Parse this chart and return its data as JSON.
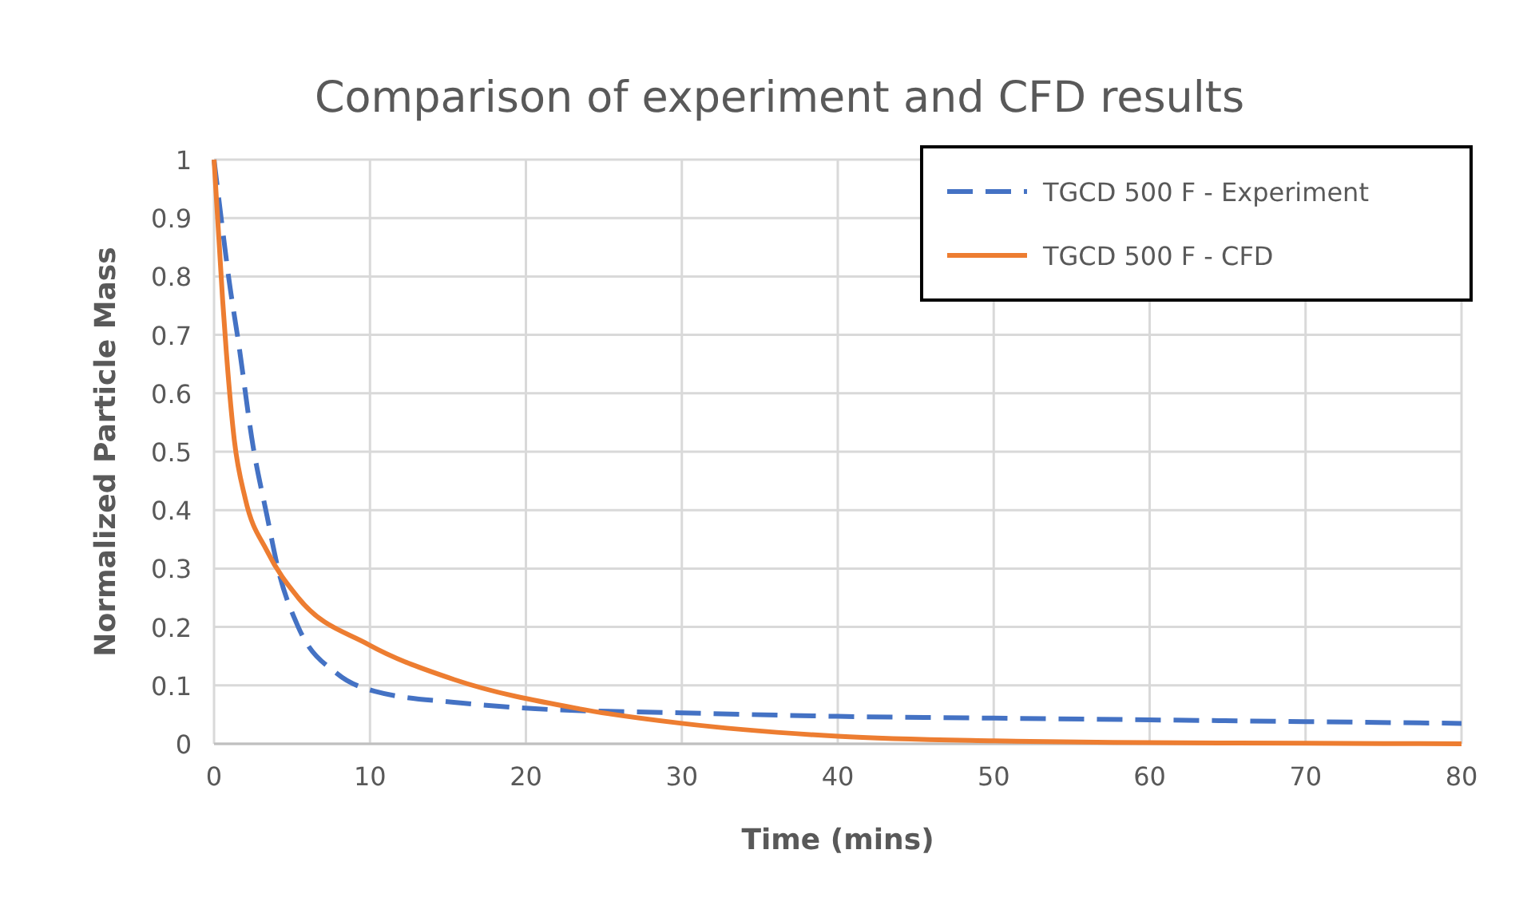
{
  "chart_data": {
    "type": "line",
    "title": "Comparison of experiment and CFD results",
    "xlabel": "Time (mins)",
    "ylabel": "Normalized Particle Mass",
    "xlim": [
      0,
      80
    ],
    "xticks": [
      0,
      10,
      20,
      30,
      40,
      50,
      60,
      70,
      80
    ],
    "ylim": [
      0,
      1
    ],
    "yticks": [
      0,
      0.1,
      0.2,
      0.3,
      0.4,
      0.5,
      0.6,
      0.7,
      0.8,
      0.9,
      1
    ],
    "grid": true,
    "legend": "top right",
    "marker": "none",
    "series": [
      {
        "name": "TGCD 500 F - Experiment",
        "color": "#4472c4",
        "line_style": "dashed",
        "x": [
          0,
          0.55,
          0.93,
          1.58,
          2.5,
          3.4,
          4.1,
          5.4,
          7.9,
          10.3,
          15.8,
          20.6,
          30,
          40,
          50,
          60,
          70,
          80
        ],
        "values": [
          1,
          0.88,
          0.8,
          0.685,
          0.51,
          0.39,
          0.3,
          0.2,
          0.12,
          0.09,
          0.07,
          0.06,
          0.053,
          0.047,
          0.044,
          0.041,
          0.038,
          0.035
        ]
      },
      {
        "name": "TGCD 500 F - CFD",
        "color": "#ed7d31",
        "line_style": "solid",
        "x": [
          0,
          0.55,
          0.79,
          1.3,
          2,
          3.4,
          5.4,
          9.9,
          15.4,
          23.4,
          30,
          40,
          50,
          60,
          70,
          80
        ],
        "values": [
          1,
          0.76,
          0.67,
          0.52,
          0.42,
          0.33,
          0.25,
          0.17,
          0.11,
          0.06,
          0.035,
          0.013,
          0.005,
          0.002,
          0.001,
          0
        ]
      }
    ]
  }
}
